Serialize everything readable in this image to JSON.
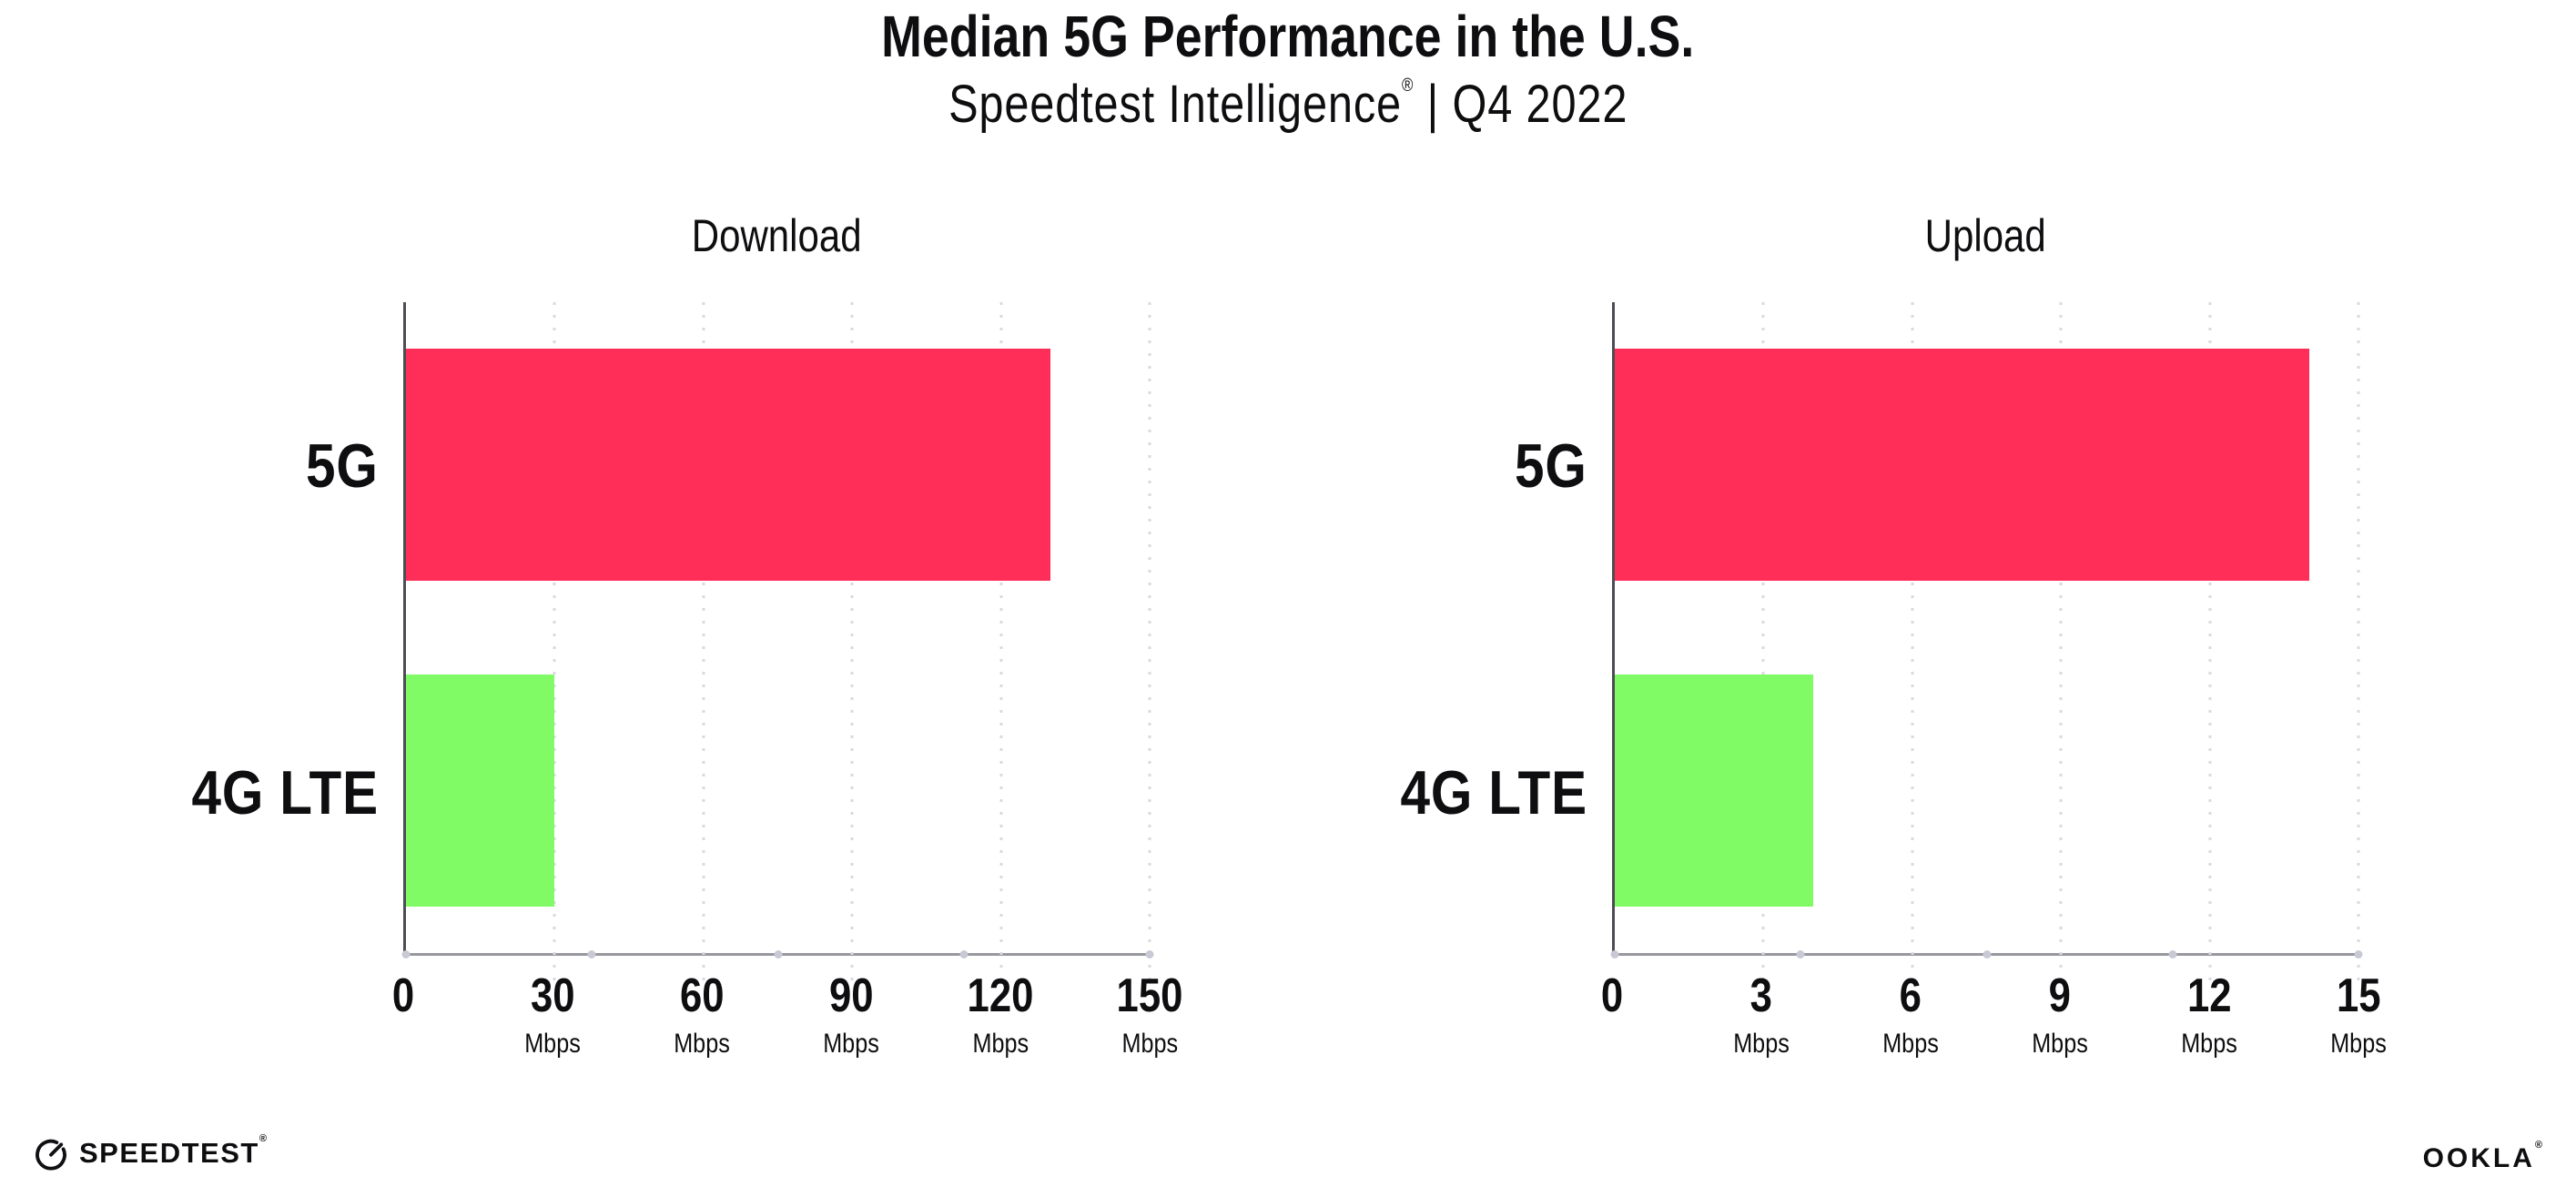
{
  "header": {
    "title": "Median 5G Performance in the U.S.",
    "subtitle_brand": "Speedtest Intelligence",
    "subtitle_trademark": "®",
    "subtitle_divider": "|",
    "subtitle_period": "Q4 2022"
  },
  "footer": {
    "speedtest_logo_text": "SPEEDTEST",
    "speedtest_trademark": "®",
    "speedtest_icon": "speedometer-gauge-icon",
    "ookla_logo_text": "OOKLA",
    "ookla_trademark": "®"
  },
  "colors": {
    "bar_5g": "#FF2E59",
    "bar_4g_lte": "#80FB66",
    "y_axis_line": "#4c4c54",
    "x_axis_line": "#97979e",
    "gridline": "#d9d9e2",
    "axis_dot": "#c9c9d6",
    "text": "#0e0e10"
  },
  "chart_data": [
    {
      "type": "bar",
      "orientation": "horizontal",
      "title": "Download",
      "categories": [
        "5G",
        "4G LTE"
      ],
      "values": [
        130,
        30
      ],
      "unit": "Mbps",
      "series_colors": [
        "#FF2E59",
        "#80FB66"
      ],
      "xlim": [
        0,
        150
      ],
      "xticks": [
        0,
        30,
        60,
        90,
        120,
        150
      ],
      "xlabel": "",
      "ylabel": "",
      "grid": "vertical-dotted",
      "legend": "none"
    },
    {
      "type": "bar",
      "orientation": "horizontal",
      "title": "Upload",
      "categories": [
        "5G",
        "4G LTE"
      ],
      "values": [
        14,
        4
      ],
      "unit": "Mbps",
      "series_colors": [
        "#FF2E59",
        "#80FB66"
      ],
      "xlim": [
        0,
        15
      ],
      "xticks": [
        0,
        3,
        6,
        9,
        12,
        15
      ],
      "xlabel": "",
      "ylabel": "",
      "grid": "vertical-dotted",
      "legend": "none"
    }
  ]
}
